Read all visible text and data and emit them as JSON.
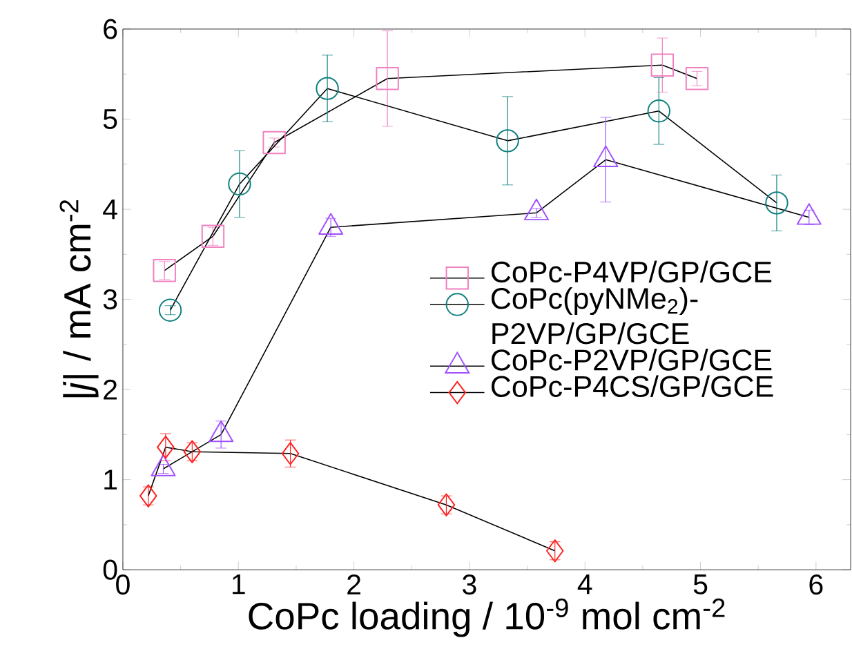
{
  "chart_data": {
    "type": "line",
    "xlabel": "CoPc loading / 10$^{-9}$ mol cm$^{-2}$",
    "ylabel": "|*j*| / mA cm$^{-2}$",
    "xlim": [
      0,
      6.3
    ],
    "xticks": [
      0,
      1,
      2,
      3,
      4,
      5,
      6
    ],
    "ylim": [
      0,
      6
    ],
    "yticks": [
      0,
      1,
      2,
      3,
      4,
      5,
      6
    ],
    "legend": "right",
    "grid": false,
    "line_style": "solid",
    "series": [
      {
        "name": "CoPc-P4VP/GP/GCE",
        "color": "#f080c0",
        "marker": "square",
        "x": [
          0.36,
          0.78,
          1.31,
          2.29,
          4.67,
          4.97
        ],
        "values": [
          3.32,
          3.7,
          4.74,
          5.45,
          5.6,
          5.45
        ],
        "errors": [
          0.1,
          0.1,
          0.05,
          0.53,
          0.3,
          0.08
        ]
      },
      {
        "name": "CoPc(pyNMe$_{2}$)-P2VP/GP/GCE",
        "color": "#107f7f",
        "marker": "circle",
        "x": [
          0.41,
          1.01,
          1.77,
          3.33,
          4.64,
          5.66
        ],
        "values": [
          2.88,
          4.28,
          5.34,
          4.76,
          5.09,
          4.07
        ],
        "errors": [
          0.05,
          0.37,
          0.37,
          0.49,
          0.37,
          0.31
        ]
      },
      {
        "name": "CoPc-P2VP/GP/GCE",
        "color": "#a050ff",
        "marker": "triangle",
        "x": [
          0.35,
          0.85,
          1.8,
          3.58,
          4.18,
          5.94
        ],
        "values": [
          1.12,
          1.5,
          3.8,
          3.96,
          4.55,
          3.91
        ],
        "errors": [
          0.05,
          0.15,
          0.1,
          0.05,
          0.47,
          0.08
        ]
      },
      {
        "name": "CoPc-P4CS/GP/GCE",
        "color": "#ff2020",
        "marker": "diamond",
        "x": [
          0.22,
          0.37,
          0.6,
          1.45,
          2.8,
          3.74
        ],
        "values": [
          0.82,
          1.36,
          1.31,
          1.29,
          0.72,
          0.21
        ],
        "errors": [
          0.1,
          0.15,
          0.1,
          0.15,
          0.1,
          0.1
        ]
      }
    ]
  }
}
